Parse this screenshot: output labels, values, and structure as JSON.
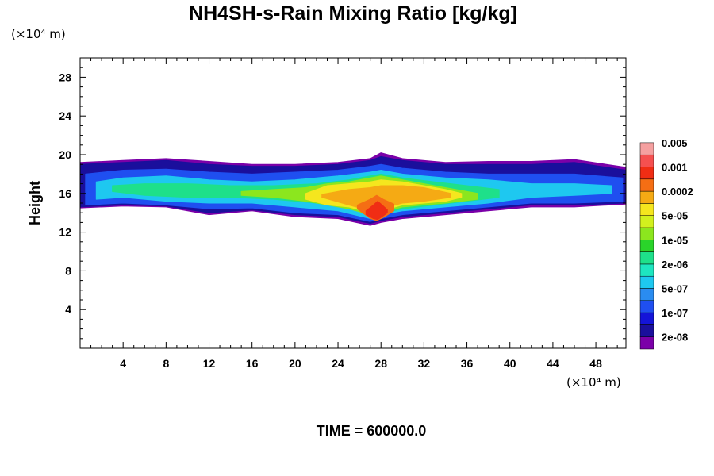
{
  "chart_data": {
    "type": "heatmap",
    "title": "NH4SH-s-Rain Mixing Ratio [kg/kg]",
    "ylabel": "Height",
    "x_unit": "(×10⁴ m)",
    "y_unit": "(×10⁴ m)",
    "footer": "TIME = 600000.0",
    "xlim": [
      0,
      50.8
    ],
    "ylim": [
      0,
      30
    ],
    "x_ticks": [
      4,
      8,
      12,
      16,
      20,
      24,
      28,
      32,
      36,
      40,
      44,
      48
    ],
    "y_ticks": [
      4,
      8,
      12,
      16,
      20,
      24,
      28
    ],
    "grid": false,
    "colorbar": {
      "colors": [
        "#7b00a8",
        "#1a0f9c",
        "#1414d8",
        "#1f4ff0",
        "#2a8cf0",
        "#1ec8f0",
        "#1ee6c0",
        "#1ee08a",
        "#2ad42a",
        "#8ce61e",
        "#d2f01e",
        "#f5e61e",
        "#f5aa14",
        "#f56e14",
        "#f02d14",
        "#f55050",
        "#f5a0a0"
      ],
      "labels": [
        "2e-08",
        "1e-07",
        "5e-07",
        "2e-06",
        "1e-05",
        "5e-05",
        "0.0002",
        "0.001",
        "0.005"
      ]
    },
    "field_bands": [
      {
        "level": 0,
        "x": [
          0.0,
          4,
          8,
          12,
          16,
          20,
          24,
          27,
          28,
          30,
          34,
          38,
          42,
          46,
          50.8
        ],
        "y_bottom": [
          14.5,
          14.7,
          14.6,
          13.8,
          14.2,
          13.6,
          13.4,
          12.7,
          13.0,
          13.4,
          13.8,
          14.2,
          14.6,
          14.6,
          14.9
        ],
        "y_top": [
          19.2,
          19.4,
          19.6,
          19.3,
          19.0,
          19.0,
          19.2,
          19.6,
          20.2,
          19.6,
          19.2,
          19.3,
          19.3,
          19.5,
          18.7
        ]
      },
      {
        "level": 1,
        "x": [
          0.0,
          4,
          8,
          12,
          16,
          20,
          24,
          27,
          28,
          30,
          34,
          38,
          42,
          46,
          50.8
        ],
        "y_bottom": [
          14.6,
          14.8,
          14.7,
          14.0,
          14.3,
          13.8,
          13.6,
          12.9,
          13.2,
          13.6,
          14.0,
          14.4,
          14.8,
          14.8,
          15.0
        ],
        "y_top": [
          19.0,
          19.2,
          19.4,
          19.0,
          18.8,
          18.8,
          19.0,
          19.4,
          19.8,
          19.4,
          19.0,
          19.0,
          19.0,
          19.2,
          18.4
        ]
      },
      {
        "level": 3,
        "x": [
          0.5,
          4,
          8,
          12,
          16,
          20,
          24,
          27,
          28,
          30,
          34,
          38,
          42,
          46,
          50.5
        ],
        "y_bottom": [
          14.8,
          15.0,
          14.8,
          14.4,
          14.5,
          14.0,
          13.8,
          13.1,
          13.4,
          13.8,
          14.2,
          14.6,
          15.0,
          15.0,
          15.2
        ],
        "y_top": [
          18.0,
          18.4,
          18.5,
          18.2,
          18.0,
          18.2,
          18.4,
          18.8,
          19.0,
          18.6,
          18.2,
          18.0,
          18.0,
          18.0,
          17.6
        ]
      },
      {
        "level": 5,
        "x": [
          1.5,
          4,
          8,
          12,
          16,
          20,
          24,
          27,
          28,
          30,
          34,
          38,
          42,
          46,
          49.5
        ],
        "y_bottom": [
          15.4,
          15.6,
          15.2,
          15.0,
          15.0,
          14.6,
          14.2,
          13.4,
          13.8,
          14.2,
          14.6,
          15.0,
          15.6,
          15.8,
          16.0
        ],
        "y_top": [
          17.2,
          17.6,
          17.8,
          17.4,
          17.2,
          17.4,
          17.8,
          18.2,
          18.4,
          18.0,
          17.6,
          17.4,
          17.0,
          17.0,
          16.8
        ]
      },
      {
        "level": 7,
        "x": [
          3,
          6,
          10,
          14,
          18,
          22,
          25,
          27,
          28,
          30,
          33,
          36,
          39
        ],
        "y_bottom": [
          16.2,
          15.8,
          15.6,
          15.6,
          15.4,
          15.0,
          14.6,
          13.6,
          13.9,
          14.4,
          14.8,
          15.2,
          15.6
        ],
        "y_top": [
          16.8,
          17.0,
          17.0,
          16.8,
          16.8,
          17.0,
          17.4,
          17.8,
          18.0,
          17.6,
          17.2,
          16.8,
          16.4
        ]
      },
      {
        "level": 9,
        "x": [
          15,
          18,
          21,
          23,
          25,
          27,
          28,
          30,
          32,
          34,
          37
        ],
        "y_bottom": [
          15.8,
          15.6,
          15.2,
          14.8,
          14.4,
          13.8,
          14.0,
          14.6,
          14.8,
          15.0,
          15.4
        ],
        "y_top": [
          16.2,
          16.4,
          16.6,
          17.0,
          17.2,
          17.6,
          17.8,
          17.4,
          17.0,
          16.6,
          16.0
        ]
      },
      {
        "level": 11,
        "x": [
          21,
          23,
          25,
          27,
          28,
          30,
          32,
          34,
          35.5
        ],
        "y_bottom": [
          15.4,
          14.8,
          14.6,
          14.0,
          14.2,
          14.8,
          15.0,
          15.2,
          15.6
        ],
        "y_top": [
          16.0,
          16.8,
          17.0,
          17.2,
          17.4,
          17.2,
          16.8,
          16.4,
          16.0
        ]
      },
      {
        "level": 12,
        "x": [
          22.5,
          25,
          27,
          28,
          30,
          32,
          34.5
        ],
        "y_bottom": [
          15.6,
          14.8,
          14.2,
          14.4,
          15.0,
          15.2,
          15.6
        ],
        "y_top": [
          15.9,
          16.4,
          16.6,
          16.8,
          16.8,
          16.6,
          16.0
        ]
      },
      {
        "level": 13,
        "x": [
          25.8,
          27,
          27.6,
          28.2,
          29.2
        ],
        "y_bottom": [
          14.4,
          13.4,
          13.2,
          13.5,
          14.2
        ],
        "y_top": [
          14.8,
          15.4,
          15.8,
          15.4,
          14.9
        ]
      },
      {
        "level": 14,
        "x": [
          26.6,
          27.3,
          27.7,
          28.1,
          28.6
        ],
        "y_bottom": [
          13.8,
          13.4,
          13.3,
          13.6,
          14.0
        ],
        "y_top": [
          14.2,
          14.8,
          15.2,
          14.8,
          14.3
        ]
      }
    ]
  }
}
